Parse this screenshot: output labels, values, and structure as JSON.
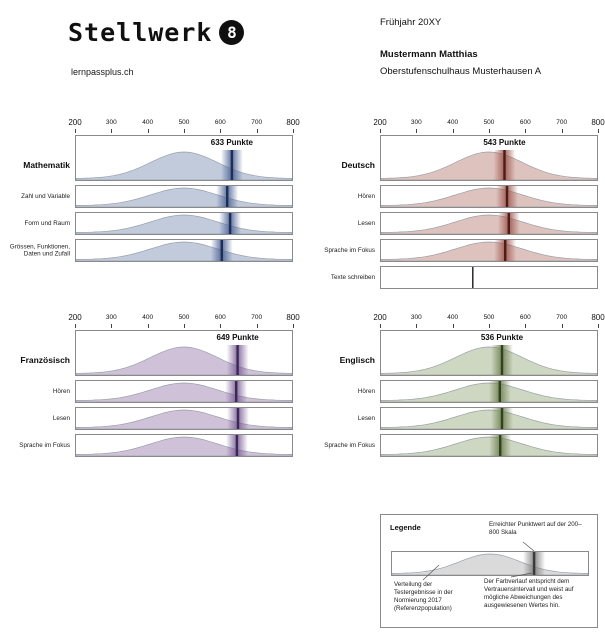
{
  "header": {
    "logo_text": "Stellwerk",
    "logo_badge": "8",
    "site": "lernpassplus.ch",
    "season": "Frühjahr 20XY",
    "student": "Mustermann Matthias",
    "school": "Oberstufenschulhaus Musterhausen A"
  },
  "axis": {
    "min": 200,
    "max": 800,
    "ticks": [
      200,
      300,
      400,
      500,
      600,
      700,
      800
    ]
  },
  "chart_data": [
    {
      "type": "area",
      "subject": "Mathematik",
      "score": 633,
      "score_label": "633 Punkte",
      "axis": {
        "min": 200,
        "max": 800,
        "ticks": [
          200,
          300,
          400,
          500,
          600,
          700,
          800
        ]
      },
      "colors": {
        "fill": "#b6c2d6",
        "band": "#4d6395",
        "marker": "#1e2f55"
      },
      "rows": [
        {
          "label": "Zahl und Variable",
          "score": 620
        },
        {
          "label": "Form und Raum",
          "score": 628
        },
        {
          "label": "Grössen, Funktionen, Daten und Zufall",
          "score": 605
        }
      ]
    },
    {
      "type": "area",
      "subject": "Deutsch",
      "score": 543,
      "score_label": "543 Punkte",
      "axis": {
        "min": 200,
        "max": 800,
        "ticks": [
          200,
          300,
          400,
          500,
          600,
          700,
          800
        ]
      },
      "colors": {
        "fill": "#d8b7b2",
        "band": "#9e574e",
        "marker": "#4a1d18"
      },
      "rows": [
        {
          "label": "Hören",
          "score": 550
        },
        {
          "label": "Lesen",
          "score": 555
        },
        {
          "label": "Sprache im Fokus",
          "score": 545
        },
        {
          "label": "Texte schreiben",
          "score": 455,
          "curve": false
        }
      ]
    },
    {
      "type": "area",
      "subject": "Französisch",
      "score": 649,
      "score_label": "649 Punkte",
      "axis": {
        "min": 200,
        "max": 800,
        "ticks": [
          200,
          300,
          400,
          500,
          600,
          700,
          800
        ]
      },
      "colors": {
        "fill": "#c7b7d1",
        "band": "#7c5f97",
        "marker": "#3a2957"
      },
      "rows": [
        {
          "label": "Hören",
          "score": 645
        },
        {
          "label": "Lesen",
          "score": 650
        },
        {
          "label": "Sprache im Fokus",
          "score": 647
        }
      ]
    },
    {
      "type": "area",
      "subject": "Englisch",
      "score": 536,
      "score_label": "536 Punkte",
      "axis": {
        "min": 200,
        "max": 800,
        "ticks": [
          200,
          300,
          400,
          500,
          600,
          700,
          800
        ]
      },
      "colors": {
        "fill": "#c6d0b6",
        "band": "#6f8052",
        "marker": "#32411e"
      },
      "rows": [
        {
          "label": "Hören",
          "score": 530
        },
        {
          "label": "Lesen",
          "score": 536
        },
        {
          "label": "Sprache im Fokus",
          "score": 531
        }
      ]
    }
  ],
  "legend": {
    "title": "Legende",
    "marker_score": 635,
    "annotation_point": "Erreichter Punktwert auf der 200–800 Skala",
    "annotation_distribution": "Verteilung der Testergebnisse in der Normierung 2017 (Referenzpopulation)",
    "annotation_band": "Der Farbverlauf entspricht dem Vertrauensintervall und weist auf mögliche Abweichungen des ausgewiesenen Wertes hin.",
    "colors": {
      "fill": "#d4d4d4",
      "band": "#7d7d7d",
      "marker": "#3a3a3a"
    }
  }
}
